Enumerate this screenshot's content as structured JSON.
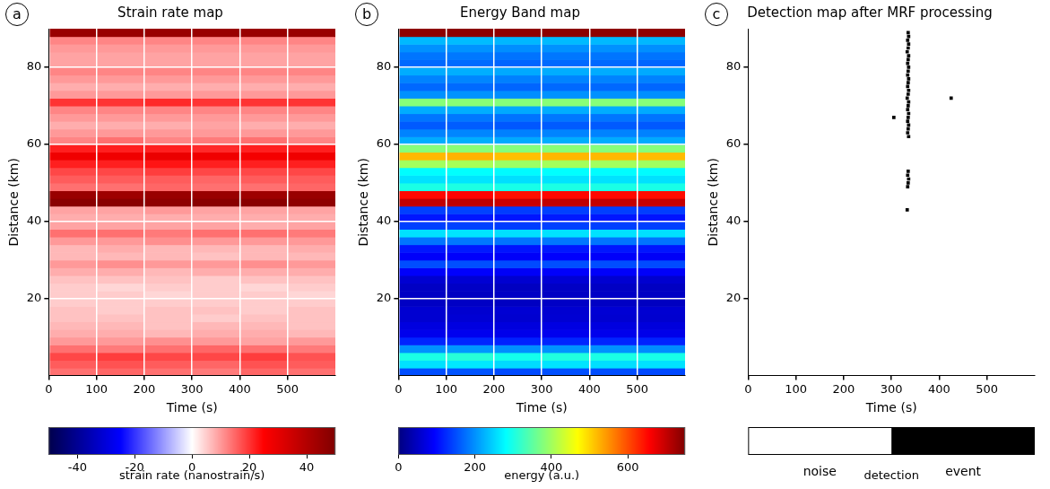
{
  "chart_data": [
    {
      "type": "heatmap",
      "panel": "a",
      "title": "Strain rate map",
      "x_label": "Time (s)",
      "y_label": "Distance (km)",
      "xlim": [
        0,
        600
      ],
      "xticks": [
        0,
        100,
        200,
        300,
        400,
        500
      ],
      "ylim": [
        0,
        90
      ],
      "yticks": [
        20,
        40,
        60,
        80
      ],
      "grid": true,
      "color": "seismic",
      "cells": {
        "x_bins": [
          0,
          100,
          200,
          300,
          400,
          500,
          600
        ],
        "y_bins": [
          0,
          2,
          4,
          6,
          8,
          10,
          12,
          14,
          16,
          18,
          20,
          22,
          24,
          26,
          28,
          30,
          32,
          34,
          36,
          38,
          40,
          42,
          44,
          46,
          48,
          50,
          52,
          54,
          56,
          58,
          60,
          62,
          64,
          66,
          68,
          70,
          72,
          74,
          76,
          78,
          80,
          82,
          84,
          86,
          88,
          90
        ],
        "values": [
          [
            14,
            15,
            14,
            13,
            15,
            14
          ],
          [
            16,
            17,
            16,
            15,
            17,
            16
          ],
          [
            18,
            19,
            18,
            18,
            19,
            17
          ],
          [
            14,
            13,
            14,
            15,
            14,
            13
          ],
          [
            10,
            10,
            11,
            10,
            9,
            10
          ],
          [
            8,
            8,
            7,
            8,
            8,
            7
          ],
          [
            7,
            7,
            6,
            7,
            7,
            6
          ],
          [
            6,
            6,
            6,
            5,
            6,
            6
          ],
          [
            6,
            5,
            6,
            6,
            5,
            6
          ],
          [
            5,
            5,
            5,
            5,
            5,
            5
          ],
          [
            5,
            5,
            4,
            5,
            5,
            4
          ],
          [
            5,
            4,
            5,
            5,
            4,
            5
          ],
          [
            6,
            6,
            6,
            5,
            6,
            6
          ],
          [
            8,
            8,
            7,
            8,
            8,
            8
          ],
          [
            10,
            11,
            10,
            10,
            11,
            10
          ],
          [
            7,
            7,
            7,
            6,
            7,
            7
          ],
          [
            7,
            8,
            7,
            7,
            7,
            8
          ],
          [
            10,
            10,
            11,
            10,
            10,
            10
          ],
          [
            14,
            14,
            13,
            14,
            14,
            13
          ],
          [
            9,
            9,
            9,
            9,
            8,
            9
          ],
          [
            8,
            8,
            8,
            8,
            8,
            8
          ],
          [
            9,
            9,
            10,
            9,
            9,
            9
          ],
          [
            48,
            48,
            47,
            48,
            48,
            47
          ],
          [
            45,
            44,
            45,
            45,
            44,
            45
          ],
          [
            14,
            14,
            15,
            14,
            14,
            15
          ],
          [
            16,
            16,
            16,
            15,
            16,
            16
          ],
          [
            18,
            18,
            19,
            18,
            18,
            18
          ],
          [
            22,
            22,
            23,
            22,
            22,
            22
          ],
          [
            28,
            28,
            29,
            28,
            27,
            28
          ],
          [
            22,
            22,
            22,
            21,
            22,
            22
          ],
          [
            12,
            14,
            12,
            13,
            14,
            12
          ],
          [
            10,
            10,
            10,
            10,
            10,
            10
          ],
          [
            8,
            8,
            8,
            9,
            8,
            8
          ],
          [
            10,
            10,
            10,
            10,
            10,
            10
          ],
          [
            12,
            12,
            12,
            12,
            12,
            12
          ],
          [
            20,
            20,
            21,
            20,
            20,
            20
          ],
          [
            10,
            10,
            10,
            10,
            10,
            10
          ],
          [
            8,
            8,
            8,
            8,
            8,
            8
          ],
          [
            10,
            10,
            10,
            10,
            10,
            10
          ],
          [
            12,
            12,
            12,
            12,
            12,
            12
          ],
          [
            9,
            9,
            9,
            9,
            9,
            9
          ],
          [
            9,
            9,
            9,
            9,
            9,
            9
          ],
          [
            10,
            10,
            10,
            10,
            10,
            10
          ],
          [
            12,
            12,
            12,
            12,
            12,
            12
          ],
          [
            45,
            45,
            45,
            45,
            45,
            45
          ]
        ]
      },
      "colorbar": {
        "label": "strain rate (nanostrain/s)",
        "range": [
          -50,
          50
        ],
        "ticks": [
          -40,
          -20,
          0,
          20,
          40
        ]
      }
    },
    {
      "type": "heatmap",
      "panel": "b",
      "title": "Energy Band map",
      "x_label": "Time (s)",
      "y_label": "Distance (km)",
      "xlim": [
        0,
        600
      ],
      "xticks": [
        0,
        100,
        200,
        300,
        400,
        500
      ],
      "ylim": [
        0,
        90
      ],
      "yticks": [
        20,
        40,
        60,
        80
      ],
      "grid": true,
      "color": "jet",
      "cells": {
        "x_bins": [
          0,
          100,
          200,
          300,
          400,
          500,
          600
        ],
        "y_bins": [
          0,
          2,
          4,
          6,
          8,
          10,
          12,
          14,
          16,
          18,
          20,
          22,
          24,
          26,
          28,
          30,
          32,
          34,
          36,
          38,
          40,
          42,
          44,
          46,
          48,
          50,
          52,
          54,
          56,
          58,
          60,
          62,
          64,
          66,
          68,
          70,
          72,
          74,
          76,
          78,
          80,
          82,
          84,
          86,
          88,
          90
        ],
        "values": [
          [
            150,
            155,
            148,
            152,
            150,
            147
          ],
          [
            260,
            265,
            255,
            262,
            258,
            260
          ],
          [
            300,
            310,
            295,
            305,
            300,
            298
          ],
          [
            200,
            205,
            198,
            202,
            200,
            196
          ],
          [
            120,
            122,
            118,
            121,
            120,
            119
          ],
          [
            80,
            82,
            79,
            81,
            80,
            78
          ],
          [
            70,
            71,
            69,
            72,
            70,
            68
          ],
          [
            60,
            62,
            59,
            61,
            60,
            58
          ],
          [
            60,
            59,
            61,
            60,
            62,
            60
          ],
          [
            50,
            51,
            49,
            52,
            50,
            48
          ],
          [
            50,
            49,
            51,
            50,
            52,
            50
          ],
          [
            50,
            52,
            48,
            51,
            50,
            49
          ],
          [
            60,
            61,
            59,
            62,
            60,
            58
          ],
          [
            90,
            92,
            88,
            91,
            90,
            89
          ],
          [
            150,
            152,
            148,
            151,
            150,
            149
          ],
          [
            90,
            91,
            89,
            92,
            90,
            88
          ],
          [
            110,
            112,
            108,
            111,
            110,
            109
          ],
          [
            180,
            182,
            178,
            181,
            180,
            179
          ],
          [
            260,
            262,
            258,
            261,
            260,
            259
          ],
          [
            140,
            142,
            138,
            141,
            140,
            139
          ],
          [
            110,
            111,
            109,
            112,
            110,
            108
          ],
          [
            140,
            142,
            138,
            141,
            140,
            139
          ],
          [
            700,
            705,
            695,
            702,
            700,
            698
          ],
          [
            650,
            655,
            645,
            652,
            650,
            648
          ],
          [
            300,
            302,
            298,
            301,
            300,
            299
          ],
          [
            260,
            262,
            258,
            261,
            260,
            259
          ],
          [
            280,
            282,
            278,
            281,
            280,
            279
          ],
          [
            400,
            405,
            395,
            402,
            400,
            398
          ],
          [
            520,
            525,
            515,
            522,
            520,
            518
          ],
          [
            380,
            382,
            378,
            381,
            380,
            379
          ],
          [
            220,
            222,
            218,
            221,
            220,
            219
          ],
          [
            190,
            192,
            188,
            191,
            190,
            189
          ],
          [
            160,
            162,
            158,
            161,
            160,
            159
          ],
          [
            180,
            182,
            178,
            181,
            180,
            179
          ],
          [
            220,
            222,
            218,
            221,
            220,
            219
          ],
          [
            380,
            382,
            378,
            381,
            380,
            379
          ],
          [
            200,
            202,
            198,
            201,
            200,
            199
          ],
          [
            170,
            172,
            168,
            171,
            170,
            169
          ],
          [
            190,
            192,
            188,
            191,
            190,
            189
          ],
          [
            220,
            222,
            218,
            221,
            220,
            219
          ],
          [
            170,
            172,
            168,
            171,
            170,
            169
          ],
          [
            180,
            182,
            178,
            181,
            180,
            179
          ],
          [
            200,
            202,
            198,
            201,
            200,
            199
          ],
          [
            230,
            232,
            228,
            231,
            230,
            229
          ],
          [
            740,
            742,
            738,
            741,
            740,
            739
          ]
        ]
      },
      "colorbar": {
        "label": "energy (a.u.)",
        "range": [
          0,
          750
        ],
        "ticks": [
          0,
          200,
          400,
          600
        ]
      }
    },
    {
      "type": "scatter",
      "panel": "c",
      "title": "Detection map after MRF processing",
      "x_label": "Time (s)",
      "y_label": "Distance (km)",
      "xlim": [
        0,
        600
      ],
      "xticks": [
        0,
        100,
        200,
        300,
        400,
        500
      ],
      "ylim": [
        0,
        90
      ],
      "yticks": [
        20,
        40,
        60,
        80
      ],
      "grid": false,
      "marker": "square",
      "color": "#000000",
      "x": [
        335,
        336,
        334,
        336,
        335,
        333,
        336,
        335,
        334,
        336,
        335,
        334,
        336,
        335,
        334,
        336,
        335,
        333,
        336,
        335,
        334,
        336,
        335,
        334,
        336,
        335,
        334,
        336,
        335,
        334,
        336,
        335,
        334,
        333,
        305,
        425
      ],
      "y": [
        89,
        88,
        87,
        86,
        85,
        84,
        83,
        82,
        81,
        80,
        79,
        78,
        77,
        76,
        75,
        74,
        73,
        72,
        71,
        70,
        69,
        68,
        67,
        66,
        65,
        64,
        63,
        62,
        53,
        52,
        51,
        50,
        49,
        43,
        67,
        72
      ],
      "colorbar": {
        "label": "detection",
        "categories": [
          "noise",
          "event"
        ],
        "colors": [
          "#ffffff",
          "#000000"
        ]
      }
    }
  ]
}
